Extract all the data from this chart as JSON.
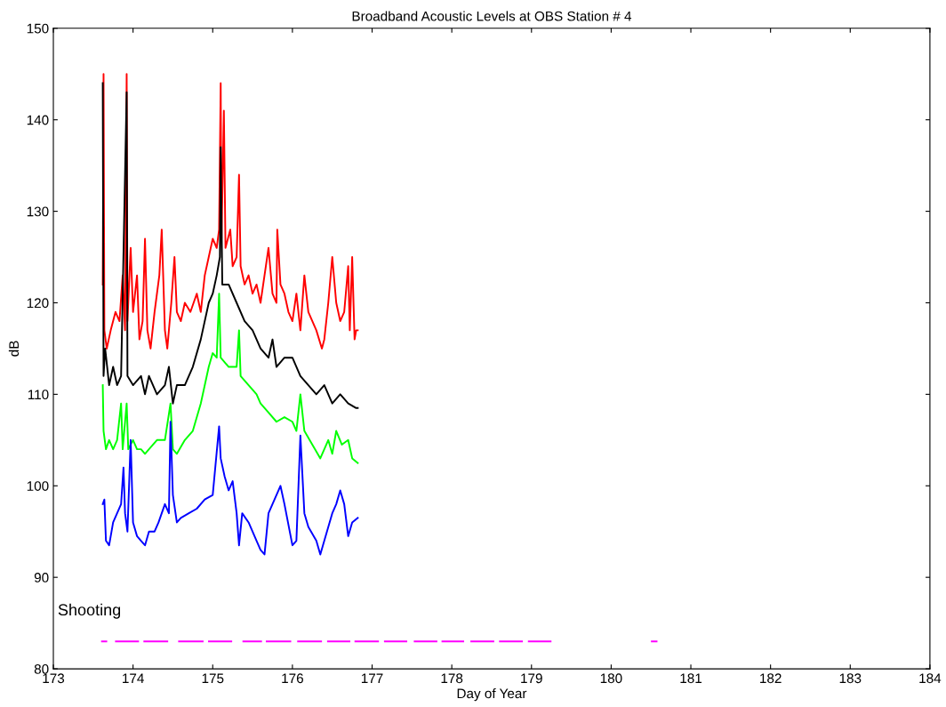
{
  "chart_data": {
    "type": "line",
    "title": "Broadband Acoustic Levels at OBS Station # 4",
    "xlabel": "Day of Year",
    "ylabel": "dB",
    "xlim": [
      173,
      184
    ],
    "xticks": [
      173,
      174,
      175,
      176,
      177,
      178,
      179,
      180,
      181,
      182,
      183,
      184
    ],
    "ylim": [
      80,
      150
    ],
    "yticks": [
      80,
      90,
      100,
      110,
      120,
      130,
      140,
      150
    ],
    "grid": false,
    "marker": "none",
    "line_style": "solid",
    "annotations": [
      "Shooting"
    ],
    "series": [
      {
        "color": "#ff0000",
        "x": [
          173.62,
          173.63,
          173.64,
          173.67,
          173.72,
          173.78,
          173.83,
          173.87,
          173.9,
          173.92,
          173.93,
          173.97,
          174.0,
          174.05,
          174.08,
          174.12,
          174.15,
          174.18,
          174.22,
          174.27,
          174.33,
          174.36,
          174.4,
          174.43,
          174.48,
          174.52,
          174.55,
          174.6,
          174.65,
          174.72,
          174.8,
          174.85,
          174.9,
          174.95,
          175.0,
          175.05,
          175.08,
          175.1,
          175.11,
          175.14,
          175.16,
          175.22,
          175.25,
          175.3,
          175.33,
          175.35,
          175.4,
          175.45,
          175.5,
          175.55,
          175.6,
          175.65,
          175.7,
          175.75,
          175.8,
          175.81,
          175.85,
          175.9,
          175.95,
          176.0,
          176.05,
          176.1,
          176.15,
          176.2,
          176.25,
          176.3,
          176.37,
          176.4,
          176.45,
          176.5,
          176.55,
          176.6,
          176.65,
          176.7,
          176.72,
          176.75,
          176.78,
          176.8,
          176.82
        ],
        "values": [
          122,
          145,
          117,
          115,
          117,
          119,
          118,
          123,
          117,
          145,
          118,
          126,
          119,
          123,
          116,
          118,
          127,
          117,
          115,
          119,
          123,
          128,
          117,
          115,
          120,
          125,
          119,
          118,
          120,
          119,
          121,
          119,
          123,
          125,
          127,
          126,
          128,
          144,
          127,
          141,
          126,
          128,
          124,
          125,
          134,
          124,
          122,
          123,
          121,
          122,
          120,
          123,
          126,
          121,
          120,
          128,
          122,
          121,
          119,
          118,
          121,
          117,
          123,
          119,
          118,
          117,
          115,
          116,
          120,
          125,
          120,
          118,
          119,
          124,
          117,
          125,
          116,
          117,
          117
        ]
      },
      {
        "color": "#000000",
        "x": [
          173.62,
          173.63,
          173.65,
          173.7,
          173.75,
          173.8,
          173.85,
          173.92,
          173.93,
          174.0,
          174.1,
          174.15,
          174.2,
          174.3,
          174.4,
          174.45,
          174.5,
          174.55,
          174.65,
          174.75,
          174.85,
          174.95,
          175.0,
          175.05,
          175.09,
          175.1,
          175.12,
          175.2,
          175.3,
          175.4,
          175.5,
          175.6,
          175.7,
          175.75,
          175.8,
          175.9,
          176.0,
          176.1,
          176.2,
          176.3,
          176.4,
          176.5,
          176.6,
          176.7,
          176.8,
          176.82
        ],
        "values": [
          144,
          112,
          115,
          111,
          113,
          111,
          112,
          143,
          112,
          111,
          112,
          110,
          112,
          110,
          111,
          113,
          109,
          111,
          111,
          113,
          116,
          120,
          121,
          123,
          125,
          137,
          122,
          122,
          120,
          118,
          117,
          115,
          114,
          116,
          113,
          114,
          114,
          112,
          111,
          110,
          111,
          109,
          110,
          109,
          108.5,
          108.5
        ]
      },
      {
        "color": "#00ff00",
        "x": [
          173.62,
          173.63,
          173.66,
          173.7,
          173.75,
          173.8,
          173.85,
          173.87,
          173.92,
          173.94,
          174.0,
          174.05,
          174.1,
          174.15,
          174.2,
          174.3,
          174.4,
          174.47,
          174.5,
          174.55,
          174.65,
          174.75,
          174.85,
          174.95,
          175.0,
          175.05,
          175.08,
          175.1,
          175.2,
          175.3,
          175.33,
          175.35,
          175.45,
          175.55,
          175.6,
          175.7,
          175.8,
          175.9,
          176.0,
          176.05,
          176.1,
          176.15,
          176.25,
          176.35,
          176.45,
          176.5,
          176.55,
          176.62,
          176.7,
          176.75,
          176.82
        ],
        "values": [
          111,
          106,
          104,
          105,
          104,
          105,
          109,
          104,
          109,
          104,
          105,
          104,
          104,
          103.5,
          104,
          105,
          105,
          109,
          104,
          103.5,
          105,
          106,
          109,
          113,
          114.5,
          114,
          121,
          114,
          113,
          113,
          117,
          112,
          111,
          110,
          109,
          108,
          107,
          107.5,
          107,
          106,
          110,
          106,
          104.5,
          103,
          105,
          103.5,
          106,
          104.5,
          105,
          103,
          102.5
        ]
      },
      {
        "color": "#0000ff",
        "x": [
          173.62,
          173.64,
          173.66,
          173.7,
          173.75,
          173.8,
          173.85,
          173.88,
          173.9,
          173.93,
          173.97,
          174.0,
          174.05,
          174.1,
          174.15,
          174.2,
          174.27,
          174.32,
          174.4,
          174.45,
          174.47,
          174.5,
          174.55,
          174.6,
          174.7,
          174.8,
          174.9,
          175.0,
          175.08,
          175.1,
          175.15,
          175.2,
          175.25,
          175.3,
          175.33,
          175.37,
          175.45,
          175.55,
          175.6,
          175.65,
          175.7,
          175.8,
          175.85,
          175.9,
          176.0,
          176.05,
          176.1,
          176.15,
          176.2,
          176.3,
          176.35,
          176.4,
          176.5,
          176.55,
          176.6,
          176.65,
          176.7,
          176.75,
          176.82
        ],
        "values": [
          98,
          98.5,
          94,
          93.5,
          96,
          97,
          98,
          102,
          97,
          95,
          105,
          96,
          94.5,
          94,
          93.5,
          95,
          95,
          96,
          98,
          97,
          107,
          99,
          96,
          96.5,
          97,
          97.5,
          98.5,
          99,
          106.5,
          103,
          101,
          99.5,
          100.5,
          97,
          93.5,
          97,
          96,
          94,
          93,
          92.5,
          97,
          99,
          100,
          98,
          93.5,
          94,
          105.5,
          97,
          95.5,
          94,
          92.5,
          94,
          97,
          98,
          99.5,
          98,
          94.5,
          96,
          96.5
        ]
      },
      {
        "color": "#ff00ff",
        "x": [
          173.61,
          173.665,
          null,
          173.785,
          174.064,
          null,
          174.141,
          174.43,
          null,
          174.577,
          174.874,
          null,
          174.952,
          175.233,
          null,
          175.384,
          175.607,
          null,
          175.677,
          175.974,
          null,
          176.071,
          176.36,
          null,
          176.446,
          176.716,
          null,
          176.79,
          177.075,
          null,
          177.16,
          177.43,
          null,
          177.534,
          177.808,
          null,
          177.882,
          178.144,
          null,
          178.244,
          178.522,
          null,
          178.604,
          178.881,
          null,
          178.966,
          179.24,
          null,
          180.51,
          180.57
        ],
        "values": [
          83,
          83,
          null,
          83,
          83,
          null,
          83,
          83,
          null,
          83,
          83,
          null,
          83,
          83,
          null,
          83,
          83,
          null,
          83,
          83,
          null,
          83,
          83,
          null,
          83,
          83,
          null,
          83,
          83,
          null,
          83,
          83,
          null,
          83,
          83,
          null,
          83,
          83,
          null,
          83,
          83,
          null,
          83,
          83,
          null,
          83,
          83,
          null,
          83,
          83
        ]
      }
    ]
  }
}
